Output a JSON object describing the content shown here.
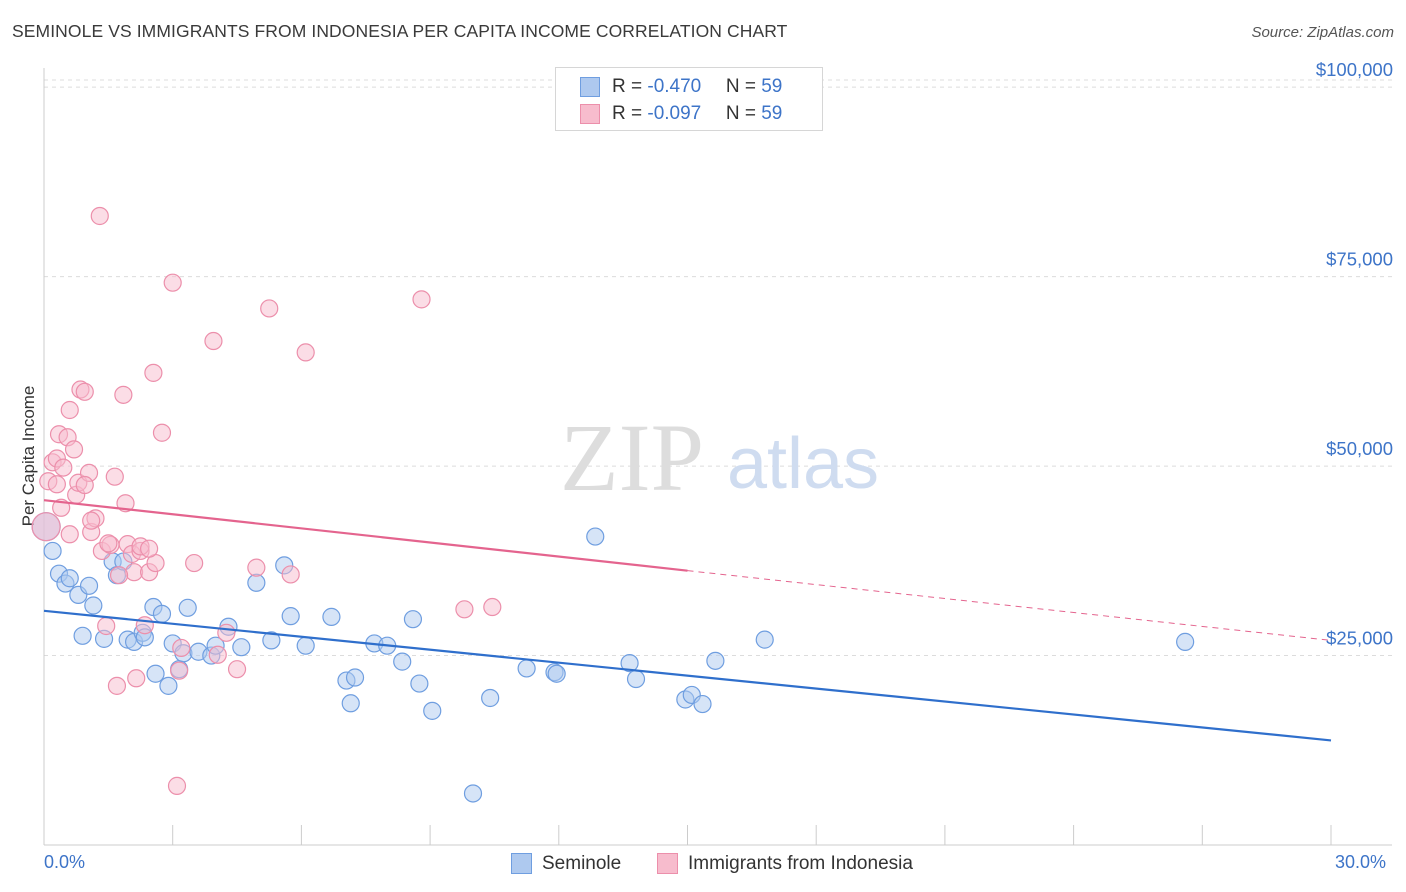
{
  "title": "SEMINOLE VS IMMIGRANTS FROM INDONESIA PER CAPITA INCOME CORRELATION CHART",
  "source": "Source: ZipAtlas.com",
  "watermark": {
    "zip": "ZIP",
    "atlas": "atlas"
  },
  "legend": {
    "rows": [
      {
        "r_label": "R = ",
        "r_value": "-0.470",
        "n_label": "N = ",
        "n_value": "59"
      },
      {
        "r_label": "R = ",
        "r_value": "-0.097",
        "n_label": "N = ",
        "n_value": "59"
      }
    ]
  },
  "bottom_legend": {
    "series1": "Seminole",
    "series2": "Immigrants from Indonesia"
  },
  "x_axis": {
    "min_label": "0.0%",
    "max_label": "30.0%"
  },
  "colors": {
    "seminole_fill": "#aec9ef",
    "seminole_stroke": "#6f9ee0",
    "seminole_line": "#2f6fcc",
    "indonesia_fill": "#f7bccd",
    "indonesia_stroke": "#ec8fab",
    "indonesia_line": "#e4648e",
    "axis_label": "#3d74c8",
    "grid": "#dcdcdc"
  },
  "chart_data": {
    "type": "scatter",
    "title": "SEMINOLE VS IMMIGRANTS FROM INDONESIA PER CAPITA INCOME CORRELATION CHART",
    "xlabel": "",
    "ylabel": "Per Capita Income",
    "xlim": [
      0,
      30
    ],
    "ylim": [
      0,
      102000
    ],
    "y_ticks": [
      {
        "value": 25000,
        "label": "$25,000"
      },
      {
        "value": 50000,
        "label": "$50,000"
      },
      {
        "value": 75000,
        "label": "$75,000"
      },
      {
        "value": 100000,
        "label": "$100,000"
      }
    ],
    "grid": true,
    "legend_position": "top-center",
    "series": [
      {
        "name": "Seminole",
        "points": [
          [
            0.05,
            42000
          ],
          [
            0.2,
            38800
          ],
          [
            0.35,
            35800
          ],
          [
            0.5,
            34500
          ],
          [
            0.6,
            35200
          ],
          [
            0.8,
            33000
          ],
          [
            0.9,
            27600
          ],
          [
            1.05,
            34200
          ],
          [
            1.15,
            31600
          ],
          [
            1.4,
            27200
          ],
          [
            1.6,
            37400
          ],
          [
            1.7,
            35600
          ],
          [
            1.85,
            37400
          ],
          [
            1.95,
            27100
          ],
          [
            2.1,
            26800
          ],
          [
            2.3,
            28000
          ],
          [
            2.35,
            27400
          ],
          [
            2.55,
            31400
          ],
          [
            2.6,
            22600
          ],
          [
            2.75,
            30500
          ],
          [
            2.9,
            21000
          ],
          [
            3.0,
            26600
          ],
          [
            3.15,
            23200
          ],
          [
            3.25,
            25300
          ],
          [
            3.35,
            31300
          ],
          [
            3.6,
            25500
          ],
          [
            3.9,
            25000
          ],
          [
            4.0,
            26300
          ],
          [
            4.3,
            28800
          ],
          [
            4.6,
            26100
          ],
          [
            4.95,
            34600
          ],
          [
            5.3,
            27000
          ],
          [
            5.6,
            36900
          ],
          [
            5.75,
            30200
          ],
          [
            6.1,
            26300
          ],
          [
            6.7,
            30100
          ],
          [
            7.05,
            21700
          ],
          [
            7.15,
            18700
          ],
          [
            7.25,
            22100
          ],
          [
            7.7,
            26600
          ],
          [
            8.0,
            26300
          ],
          [
            8.35,
            24200
          ],
          [
            8.6,
            29800
          ],
          [
            8.75,
            21300
          ],
          [
            9.05,
            17700
          ],
          [
            10.0,
            6800
          ],
          [
            10.4,
            19400
          ],
          [
            11.25,
            23300
          ],
          [
            11.9,
            22800
          ],
          [
            12.85,
            40700
          ],
          [
            13.65,
            24000
          ],
          [
            13.8,
            21900
          ],
          [
            14.95,
            19200
          ],
          [
            15.1,
            19800
          ],
          [
            15.35,
            18600
          ],
          [
            15.65,
            24300
          ],
          [
            16.8,
            27100
          ],
          [
            26.6,
            26800
          ],
          [
            11.95,
            22600
          ]
        ]
      },
      {
        "name": "Immigrants from Indonesia",
        "points": [
          [
            0.05,
            42000
          ],
          [
            0.1,
            48000
          ],
          [
            0.2,
            50500
          ],
          [
            0.3,
            51000
          ],
          [
            0.35,
            54200
          ],
          [
            0.45,
            49800
          ],
          [
            0.55,
            53800
          ],
          [
            0.6,
            57400
          ],
          [
            0.7,
            52200
          ],
          [
            0.75,
            46200
          ],
          [
            0.8,
            47800
          ],
          [
            0.85,
            60100
          ],
          [
            0.95,
            59800
          ],
          [
            1.05,
            49100
          ],
          [
            1.1,
            41300
          ],
          [
            1.2,
            43100
          ],
          [
            1.3,
            83000
          ],
          [
            1.35,
            38800
          ],
          [
            1.45,
            28900
          ],
          [
            1.55,
            39600
          ],
          [
            1.65,
            48600
          ],
          [
            1.7,
            21000
          ],
          [
            1.85,
            59400
          ],
          [
            1.9,
            45100
          ],
          [
            1.95,
            39700
          ],
          [
            2.05,
            38400
          ],
          [
            2.1,
            36000
          ],
          [
            2.15,
            22000
          ],
          [
            2.25,
            38800
          ],
          [
            2.35,
            29000
          ],
          [
            2.45,
            36000
          ],
          [
            2.55,
            62300
          ],
          [
            2.6,
            37200
          ],
          [
            2.75,
            54400
          ],
          [
            3.0,
            74200
          ],
          [
            3.15,
            23000
          ],
          [
            3.2,
            26000
          ],
          [
            3.5,
            37200
          ],
          [
            3.95,
            66500
          ],
          [
            4.05,
            25100
          ],
          [
            4.25,
            28000
          ],
          [
            4.5,
            23200
          ],
          [
            4.95,
            36600
          ],
          [
            5.25,
            70800
          ],
          [
            5.75,
            35700
          ],
          [
            6.1,
            65000
          ],
          [
            8.8,
            72000
          ],
          [
            9.8,
            31100
          ],
          [
            10.45,
            31400
          ],
          [
            3.1,
            7800
          ],
          [
            2.25,
            39400
          ],
          [
            1.75,
            35600
          ],
          [
            1.5,
            39800
          ],
          [
            2.45,
            39100
          ],
          [
            0.95,
            47500
          ],
          [
            1.1,
            42800
          ],
          [
            0.3,
            47600
          ],
          [
            0.6,
            41000
          ],
          [
            0.4,
            44500
          ]
        ]
      }
    ],
    "trend_lines": [
      {
        "series": "Seminole",
        "x": [
          0,
          30
        ],
        "y": [
          30900,
          13800
        ]
      },
      {
        "series": "Immigrants from Indonesia",
        "x": [
          0,
          15
        ],
        "y": [
          45500,
          36200
        ],
        "dashed_extension_to": [
          30,
          27000
        ]
      }
    ]
  }
}
